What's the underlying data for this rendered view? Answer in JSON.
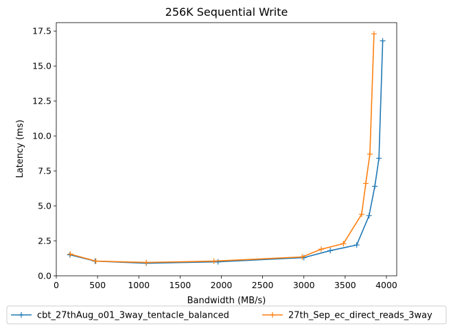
{
  "chart_data": {
    "type": "line",
    "title": "256K  Sequential Write",
    "xlabel": "Bandwidth (MB/s)",
    "ylabel": "Latency (ms)",
    "xlim": [
      0,
      4125
    ],
    "ylim": [
      0,
      18.1
    ],
    "xticks": [
      0,
      500,
      1000,
      1500,
      2000,
      2500,
      3000,
      3500,
      4000
    ],
    "yticks": [
      0.0,
      2.5,
      5.0,
      7.5,
      10.0,
      12.5,
      15.0,
      17.5
    ],
    "xtick_labels": [
      "0",
      "500",
      "1000",
      "1500",
      "2000",
      "2500",
      "3000",
      "3500",
      "4000"
    ],
    "ytick_labels": [
      "0.0",
      "2.5",
      "5.0",
      "7.5",
      "10.0",
      "12.5",
      "15.0",
      "17.5"
    ],
    "legend_position": "bottom-center-outside",
    "grid": false,
    "series": [
      {
        "name": "cbt_27thAug_o01_3way_tentacle_balanced",
        "color": "#1f77b4",
        "marker": "plus",
        "x": [
          165,
          470,
          1090,
          1960,
          3000,
          3320,
          3640,
          3790,
          3860,
          3910,
          3955
        ],
        "y": [
          1.5,
          1.05,
          0.9,
          1.0,
          1.3,
          1.8,
          2.2,
          4.3,
          6.4,
          8.4,
          16.8
        ]
      },
      {
        "name": "27th_Sep_ec_direct_reads_3way",
        "color": "#ff7f0e",
        "marker": "plus",
        "x": [
          170,
          480,
          1090,
          1910,
          2980,
          3210,
          3480,
          3700,
          3750,
          3800,
          3850
        ],
        "y": [
          1.55,
          1.05,
          0.95,
          1.05,
          1.35,
          1.9,
          2.3,
          4.4,
          6.6,
          8.7,
          17.3
        ]
      }
    ]
  }
}
